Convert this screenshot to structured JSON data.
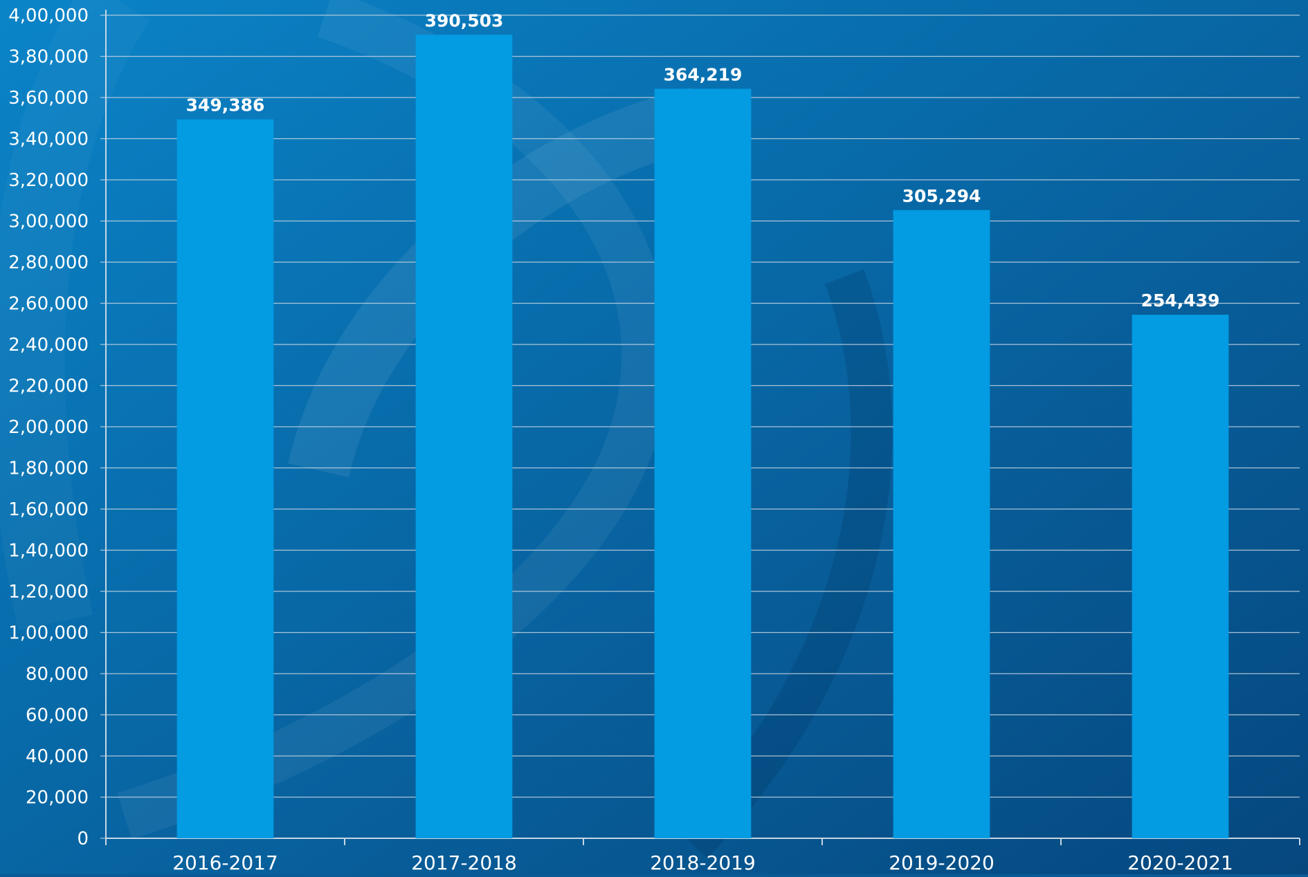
{
  "chart_data": {
    "type": "bar",
    "title": "",
    "xlabel": "",
    "ylabel": "",
    "categories": [
      "2016-2017",
      "2017-2018",
      "2018-2019",
      "2019-2020",
      "2020-2021"
    ],
    "values": [
      349386,
      390503,
      364219,
      305294,
      254439
    ],
    "value_labels": [
      "349,386",
      "390,503",
      "364,219",
      "305,294",
      "254,439"
    ],
    "ylim": [
      0,
      400000
    ],
    "yticks": [
      {
        "value": 0,
        "label": "0"
      },
      {
        "value": 20000,
        "label": "20,000"
      },
      {
        "value": 40000,
        "label": "40,000"
      },
      {
        "value": 60000,
        "label": "60,000"
      },
      {
        "value": 80000,
        "label": "80,000"
      },
      {
        "value": 100000,
        "label": "1,00,000"
      },
      {
        "value": 120000,
        "label": "1,20,000"
      },
      {
        "value": 140000,
        "label": "1,40,000"
      },
      {
        "value": 160000,
        "label": "1,60,000"
      },
      {
        "value": 180000,
        "label": "1,80,000"
      },
      {
        "value": 200000,
        "label": "2,00,000"
      },
      {
        "value": 220000,
        "label": "2,20,000"
      },
      {
        "value": 240000,
        "label": "2,40,000"
      },
      {
        "value": 260000,
        "label": "2,60,000"
      },
      {
        "value": 280000,
        "label": "2,80,000"
      },
      {
        "value": 300000,
        "label": "3,00,000"
      },
      {
        "value": 320000,
        "label": "3,20,000"
      },
      {
        "value": 340000,
        "label": "3,40,000"
      },
      {
        "value": 360000,
        "label": "3,60,000"
      },
      {
        "value": 380000,
        "label": "3,80,000"
      },
      {
        "value": 400000,
        "label": "4,00,000"
      }
    ],
    "grid": true,
    "legend": "none",
    "colors": {
      "bar": "#039be2",
      "background_light": "#0a84c8",
      "background_dark": "#06477e",
      "grid": "#c8d6e3",
      "text": "#ffffff"
    }
  }
}
